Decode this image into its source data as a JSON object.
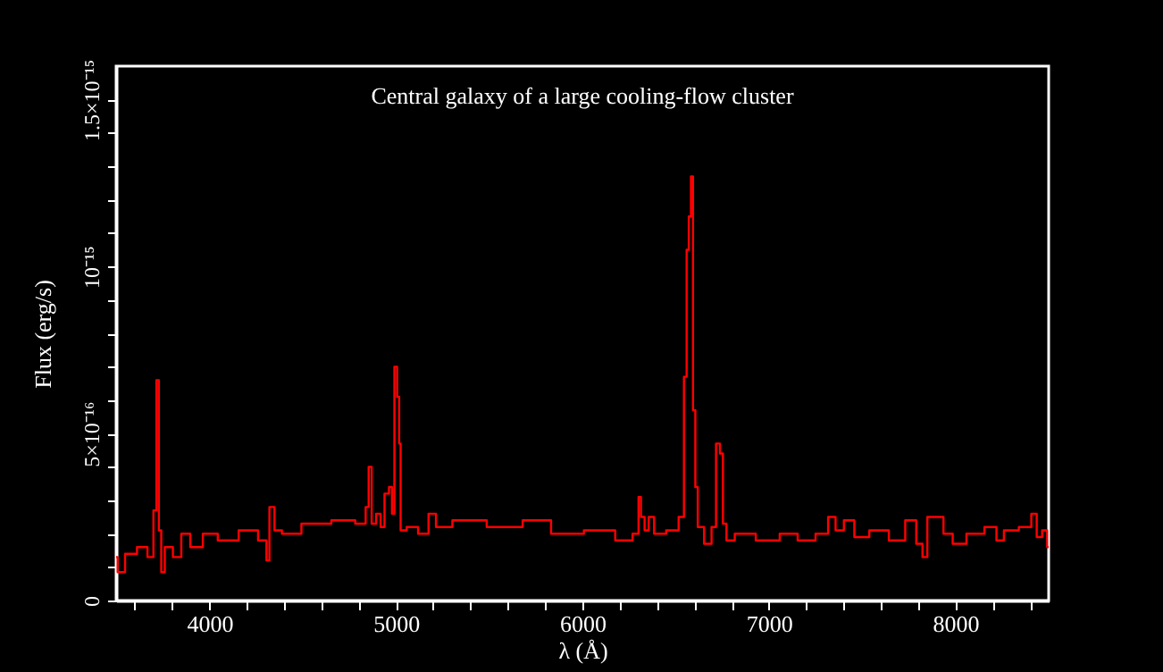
{
  "chart_data": {
    "type": "step",
    "title": "Central galaxy of a large cooling-flow cluster",
    "xlabel": "λ (Å)",
    "ylabel": "Flux (erg/s)",
    "xlim": [
      3500,
      8500
    ],
    "xticks": [
      {
        "value": 3600,
        "label": null
      },
      {
        "value": 3800,
        "label": null
      },
      4000,
      {
        "value": 4200,
        "label": null
      },
      {
        "value": 4400,
        "label": null
      },
      {
        "value": 4600,
        "label": null
      },
      {
        "value": 4800,
        "label": null
      },
      5000,
      {
        "value": 5200,
        "label": null
      },
      {
        "value": 5400,
        "label": null
      },
      {
        "value": 5600,
        "label": null
      },
      {
        "value": 5800,
        "label": null
      },
      6000,
      {
        "value": 6200,
        "label": null
      },
      {
        "value": 6400,
        "label": null
      },
      {
        "value": 6600,
        "label": null
      },
      {
        "value": 6800,
        "label": null
      },
      7000,
      {
        "value": 7200,
        "label": null
      },
      {
        "value": 7400,
        "label": null
      },
      {
        "value": 7600,
        "label": null
      },
      {
        "value": 7800,
        "label": null
      },
      8000,
      {
        "value": 8200,
        "label": null
      },
      {
        "value": 8400,
        "label": null
      }
    ],
    "ylim": [
      0,
      1.6e-15
    ],
    "yticks": [
      0,
      {
        "value": 1e-16,
        "label": null
      },
      {
        "value": 2e-16,
        "label": null
      },
      {
        "value": 3e-16,
        "label": null
      },
      {
        "value": 4e-16,
        "label": null
      },
      {
        "value": 5e-16,
        "label": "5×10⁻¹⁶"
      },
      {
        "value": 6e-16,
        "label": null
      },
      {
        "value": 7e-16,
        "label": null
      },
      {
        "value": 8e-16,
        "label": null
      },
      {
        "value": 9e-16,
        "label": null
      },
      {
        "value": 1e-15,
        "label": "10⁻¹⁵"
      },
      {
        "value": 1.1e-15,
        "label": null
      },
      {
        "value": 1.2e-15,
        "label": null
      },
      {
        "value": 1.3e-15,
        "label": null
      },
      {
        "value": 1.4e-15,
        "label": null
      },
      {
        "value": 1.5e-15,
        "label": "1.5×10⁻¹⁵"
      }
    ],
    "grid": false,
    "series": [
      {
        "color": "#ff0000",
        "x": [
          3500,
          3516,
          3580,
          3644,
          3692,
          3708,
          3724,
          3734,
          3750,
          3772,
          3837,
          3862,
          3933,
          3997,
          4093,
          4221,
          4301,
          4311,
          4333,
          4365,
          4413,
          4574,
          4734,
          4830,
          4846,
          4862,
          4878,
          4910,
          4926,
          4952,
          4974,
          4984,
          5000,
          5013,
          5022,
          5029,
          5087,
          5151,
          5199,
          5231,
          5375,
          5599,
          5760,
          5904,
          6112,
          6240,
          6298,
          6304,
          6324,
          6343,
          6368,
          6401,
          6497,
          6535,
          6554,
          6564,
          6577,
          6587,
          6599,
          6612,
          6625,
          6680,
          6705,
          6728,
          6747,
          6760,
          6785,
          6849,
          7010,
          7106,
          7202,
          7298,
          7337,
          7378,
          7426,
          7490,
          7587,
          7699,
          7763,
          7817,
          7830,
          7869,
          7920,
          7952,
          8019,
          8099,
          8212,
          8228,
          8292,
          8388,
          8426,
          8446,
          8484,
          8500
        ],
        "values": [
          1.3e-16,
          8.5e-17,
          1.4e-16,
          1.6e-16,
          1.3e-16,
          2.7e-16,
          6.6e-16,
          2.1e-16,
          8.5e-17,
          1.6e-16,
          1.3e-16,
          2e-16,
          1.6e-16,
          2e-16,
          1.8e-16,
          2.1e-16,
          1.8e-16,
          1.2e-16,
          2.8e-16,
          2.1e-16,
          2e-16,
          2.3e-16,
          2.4e-16,
          2.3e-16,
          2.8e-16,
          4e-16,
          2.3e-16,
          2.6e-16,
          2.2e-16,
          3.2e-16,
          3.4e-16,
          2.6e-16,
          7e-16,
          6.1e-16,
          4.7e-16,
          2.1e-16,
          2.2e-16,
          2e-16,
          2.6e-16,
          2.2e-16,
          2.4e-16,
          2.2e-16,
          2.4e-16,
          2e-16,
          2.1e-16,
          1.8e-16,
          2e-16,
          3.1e-16,
          2.5e-16,
          2.1e-16,
          2.5e-16,
          2e-16,
          2.1e-16,
          2.5e-16,
          6.7e-16,
          1.05e-15,
          1.15e-15,
          1.27e-15,
          5.7e-16,
          3.4e-16,
          2.2e-16,
          1.7e-16,
          2.2e-16,
          4.7e-16,
          4.4e-16,
          2.3e-16,
          1.8e-16,
          2e-16,
          1.8e-16,
          2e-16,
          1.8e-16,
          2e-16,
          2.5e-16,
          2.1e-16,
          2.4e-16,
          1.9e-16,
          2.1e-16,
          1.8e-16,
          2.4e-16,
          1.7e-16,
          1.3e-16,
          2.5e-16,
          2.5e-16,
          2e-16,
          1.7e-16,
          2e-16,
          2.2e-16,
          1.8e-16,
          2.1e-16,
          2.2e-16,
          2.6e-16,
          1.9e-16,
          2.1e-16,
          1.6e-16
        ]
      }
    ]
  }
}
